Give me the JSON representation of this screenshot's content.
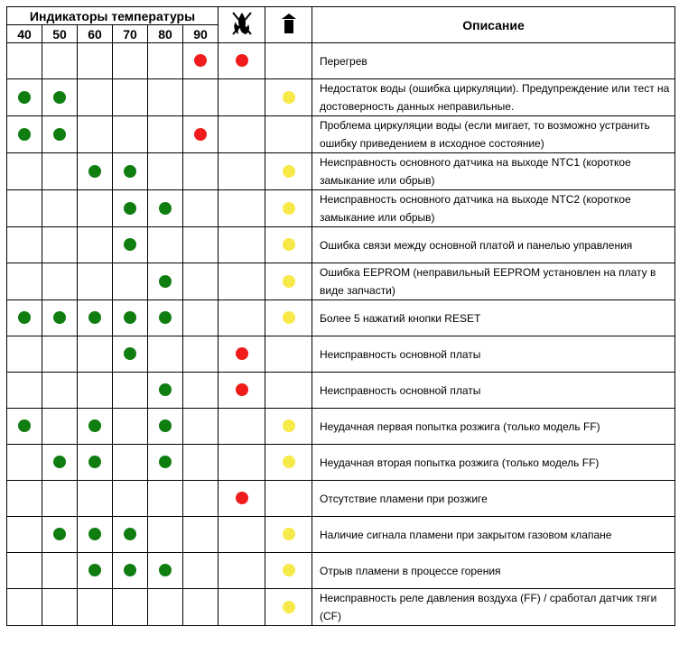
{
  "header": {
    "group_title": "Индикаторы температуры",
    "temps": [
      "40",
      "50",
      "60",
      "70",
      "80",
      "90"
    ],
    "description_title": "Описание",
    "icons": [
      "flame-off-icon",
      "chimney-icon"
    ]
  },
  "colors": {
    "green": "#0f7d10",
    "red": "#f01c1c",
    "yellow": "#f7e94a"
  },
  "rows": [
    {
      "dots": [
        "",
        "",
        "",
        "",
        "",
        "r",
        "r",
        ""
      ],
      "text": "Перегрев"
    },
    {
      "dots": [
        "g",
        "g",
        "",
        "",
        "",
        "",
        "",
        "y"
      ],
      "text": "Недостаток воды (ошибка циркуляции). Предупреждение или тест на достоверность данных неправильные."
    },
    {
      "dots": [
        "g",
        "g",
        "",
        "",
        "",
        "r",
        "",
        ""
      ],
      "text": "Проблема циркуляции воды (если мигает, то возможно устранить ошибку приведением в исходное состояние)"
    },
    {
      "dots": [
        "",
        "",
        "g",
        "g",
        "",
        "",
        "",
        "y"
      ],
      "text": "Неисправность основного датчика на выходе NTC1 (короткое замыкание или обрыв)"
    },
    {
      "dots": [
        "",
        "",
        "",
        "g",
        "g",
        "",
        "",
        "y"
      ],
      "text": "Неисправность основного датчика на выходе NTC2 (короткое замыкание или обрыв)"
    },
    {
      "dots": [
        "",
        "",
        "",
        "g",
        "",
        "",
        "",
        "y"
      ],
      "text": "Ошибка связи между основной платой и панелью управления"
    },
    {
      "dots": [
        "",
        "",
        "",
        "",
        "g",
        "",
        "",
        "y"
      ],
      "text": "Ошибка EEPROM (неправильный EEPROM установлен на плату в виде запчасти)"
    },
    {
      "dots": [
        "g",
        "g",
        "g",
        "g",
        "g",
        "",
        "",
        "y"
      ],
      "text": "Более 5 нажатий кнопки RESET"
    },
    {
      "dots": [
        "",
        "",
        "",
        "g",
        "",
        "",
        "r",
        ""
      ],
      "text": "Неисправность основной платы"
    },
    {
      "dots": [
        "",
        "",
        "",
        "",
        "g",
        "",
        "r",
        ""
      ],
      "text": "Неисправность основной платы"
    },
    {
      "dots": [
        "g",
        "",
        "g",
        "",
        "g",
        "",
        "",
        "y"
      ],
      "text": "Неудачная первая попытка розжига (только модель FF)"
    },
    {
      "dots": [
        "",
        "g",
        "g",
        "",
        "g",
        "",
        "",
        "y"
      ],
      "text": "Неудачная вторая попытка розжига (только модель FF)"
    },
    {
      "dots": [
        "",
        "",
        "",
        "",
        "",
        "",
        "r",
        ""
      ],
      "text": "Отсутствие пламени при розжиге"
    },
    {
      "dots": [
        "",
        "g",
        "g",
        "g",
        "",
        "",
        "",
        "y"
      ],
      "text": "Наличие сигнала пламени при закрытом газовом клапане"
    },
    {
      "dots": [
        "",
        "",
        "g",
        "g",
        "g",
        "",
        "",
        "y"
      ],
      "text": "Отрыв пламени в процессе горения"
    },
    {
      "dots": [
        "",
        "",
        "",
        "",
        "",
        "",
        "",
        "y"
      ],
      "text": "Неисправность реле давления воздуха (FF) / сработал датчик тяги (CF)"
    }
  ]
}
